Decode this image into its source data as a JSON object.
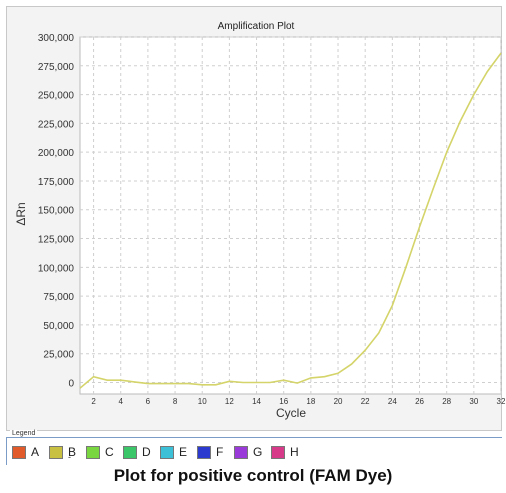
{
  "chart_data": {
    "type": "line",
    "title": "Amplification Plot",
    "xlabel": "Cycle",
    "ylabel": "ΔRn",
    "xlim": [
      1,
      32
    ],
    "ylim": [
      -10000,
      300000
    ],
    "x_ticks": [
      2,
      4,
      6,
      8,
      10,
      12,
      14,
      16,
      18,
      20,
      22,
      24,
      26,
      28,
      30,
      32
    ],
    "y_ticks": [
      0,
      25000,
      50000,
      75000,
      100000,
      125000,
      150000,
      175000,
      200000,
      225000,
      250000,
      275000,
      300000
    ],
    "y_tick_labels": [
      "0",
      "25,000",
      "50,000",
      "75,000",
      "100,000",
      "125,000",
      "150,000",
      "175,000",
      "200,000",
      "225,000",
      "250,000",
      "275,000",
      "300,000"
    ],
    "grid": true,
    "series": [
      {
        "color": "#d4d46a",
        "x": [
          1,
          2,
          3,
          4,
          5,
          6,
          7,
          8,
          9,
          10,
          11,
          12,
          13,
          14,
          15,
          16,
          17,
          18,
          19,
          20,
          21,
          22,
          23,
          24,
          25,
          26,
          27,
          28,
          29,
          30,
          31,
          32
        ],
        "y": [
          -5000,
          5000,
          2000,
          2000,
          500,
          -1000,
          -1000,
          -1000,
          -1000,
          -2000,
          -2000,
          1000,
          0,
          0,
          0,
          2000,
          -500,
          4000,
          5000,
          8000,
          16000,
          28000,
          43000,
          67000,
          100000,
          135000,
          168000,
          200000,
          227000,
          250000,
          270000,
          286000
        ]
      }
    ]
  },
  "legend": {
    "title": "Legend",
    "items": [
      {
        "label": "A",
        "color": "#e05a2a"
      },
      {
        "label": "B",
        "color": "#c8c040"
      },
      {
        "label": "C",
        "color": "#7ad640"
      },
      {
        "label": "D",
        "color": "#3cc66a"
      },
      {
        "label": "E",
        "color": "#3cc0d8"
      },
      {
        "label": "F",
        "color": "#2c3ad0"
      },
      {
        "label": "G",
        "color": "#9a3ad8"
      },
      {
        "label": "H",
        "color": "#d83a8a"
      }
    ]
  },
  "under_tick": "-",
  "caption": "Plot for positive control (FAM Dye)"
}
